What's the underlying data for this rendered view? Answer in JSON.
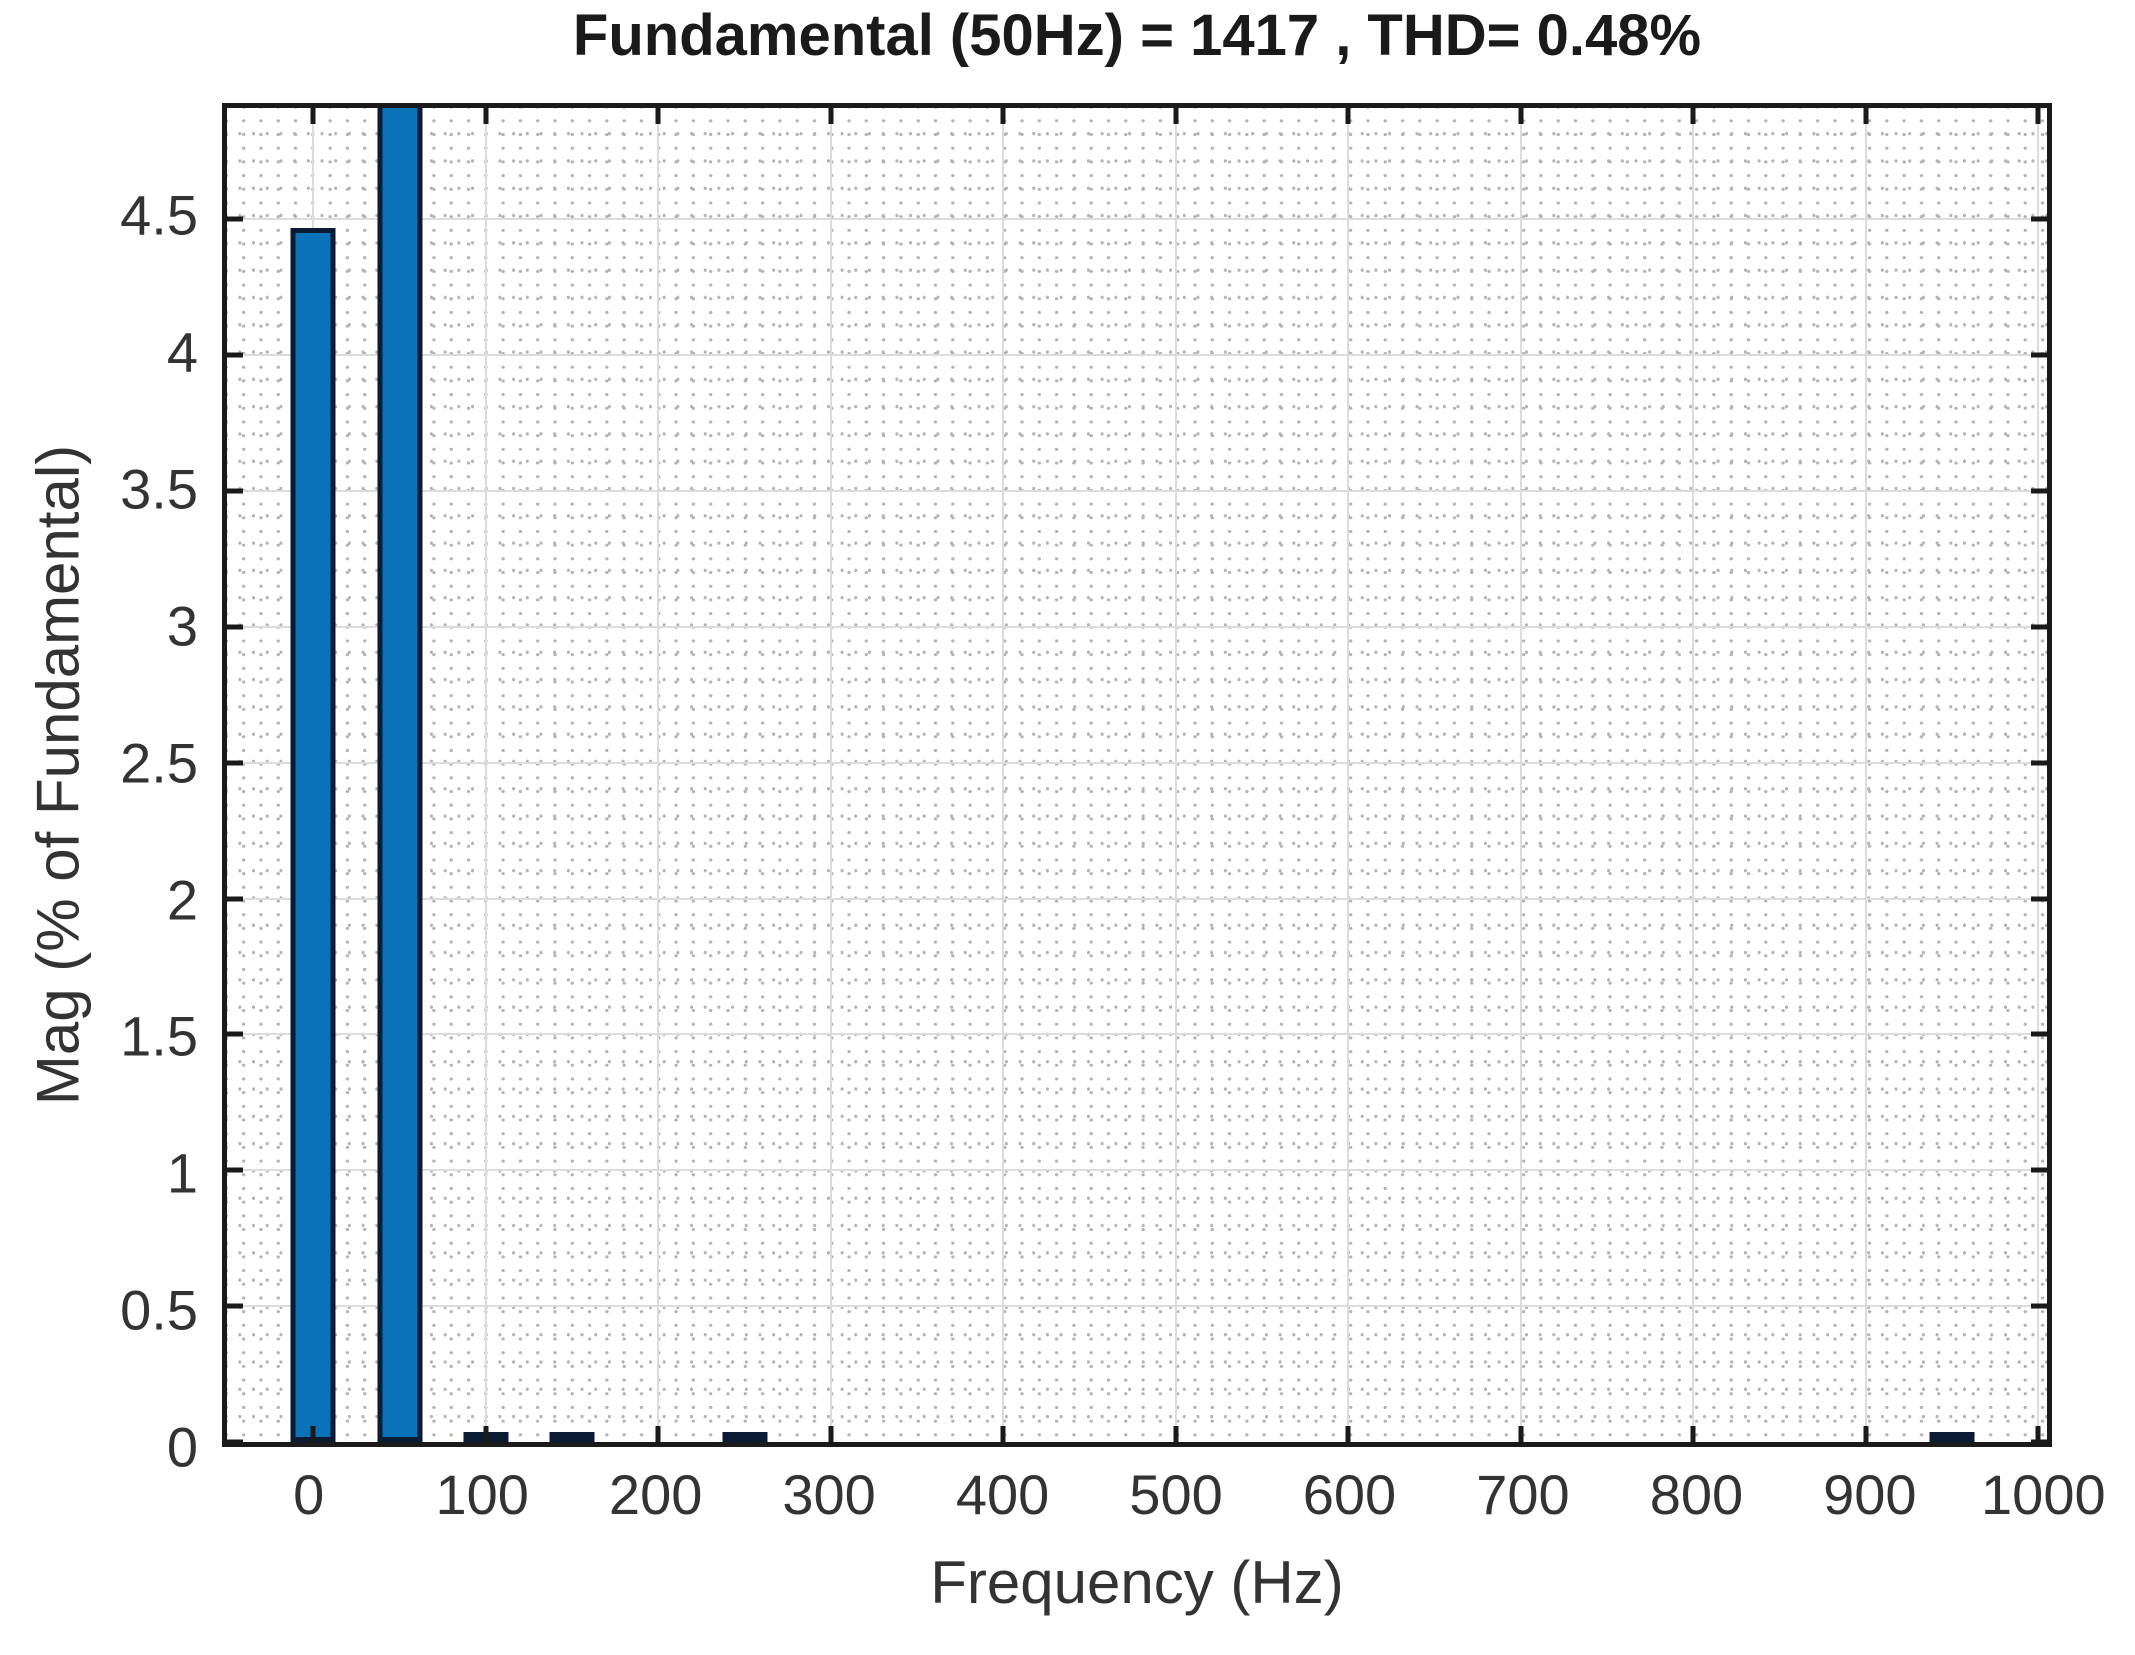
{
  "chart_data": {
    "type": "bar",
    "title": "Fundamental (50Hz) = 1417 , THD= 0.48%",
    "xlabel": "Frequency (Hz)",
    "ylabel": "Mag (% of Fundamental)",
    "xlim": [
      -50,
      1005
    ],
    "ylim": [
      0,
      4.91
    ],
    "grid": "on (dotted minor grid, solid major gridlines)",
    "legend_position": "none",
    "x_ticks": [
      {
        "value": 0,
        "label": "0"
      },
      {
        "value": 100,
        "label": "100"
      },
      {
        "value": 200,
        "label": "200"
      },
      {
        "value": 300,
        "label": "300"
      },
      {
        "value": 400,
        "label": "400"
      },
      {
        "value": 500,
        "label": "500"
      },
      {
        "value": 600,
        "label": "600"
      },
      {
        "value": 700,
        "label": "700"
      },
      {
        "value": 800,
        "label": "800"
      },
      {
        "value": 900,
        "label": "900"
      },
      {
        "value": 1000,
        "label": "1000"
      }
    ],
    "y_ticks": [
      {
        "value": 0,
        "label": "0"
      },
      {
        "value": 0.5,
        "label": "0.5"
      },
      {
        "value": 1,
        "label": "1"
      },
      {
        "value": 1.5,
        "label": "1.5"
      },
      {
        "value": 2,
        "label": "2"
      },
      {
        "value": 2.5,
        "label": "2.5"
      },
      {
        "value": 3,
        "label": "3"
      },
      {
        "value": 3.5,
        "label": "3.5"
      },
      {
        "value": 4,
        "label": "4"
      },
      {
        "value": 4.5,
        "label": "4.5"
      }
    ],
    "bar_width_hz": 26,
    "bars": [
      {
        "freq": 0,
        "value": 4.47,
        "note": "DC component"
      },
      {
        "freq": 50,
        "value": 100,
        "note": "fundamental, clipped at top of axes"
      },
      {
        "freq": 100,
        "value": 0.02
      },
      {
        "freq": 150,
        "value": 0.02
      },
      {
        "freq": 250,
        "value": 0.02
      },
      {
        "freq": 950,
        "value": 0.02
      }
    ],
    "fundamental_hz": 50,
    "fundamental_magnitude": 1417,
    "thd_percent": 0.48,
    "colors": {
      "bar_fill": "#0a72b8",
      "bar_edge": "#0a1b33",
      "axis": "#1a1a1a",
      "major_grid": "#dcdcdc",
      "minor_grid_dots": "#b3b3b3",
      "tick_text": "#333333",
      "background": "#ffffff"
    }
  }
}
